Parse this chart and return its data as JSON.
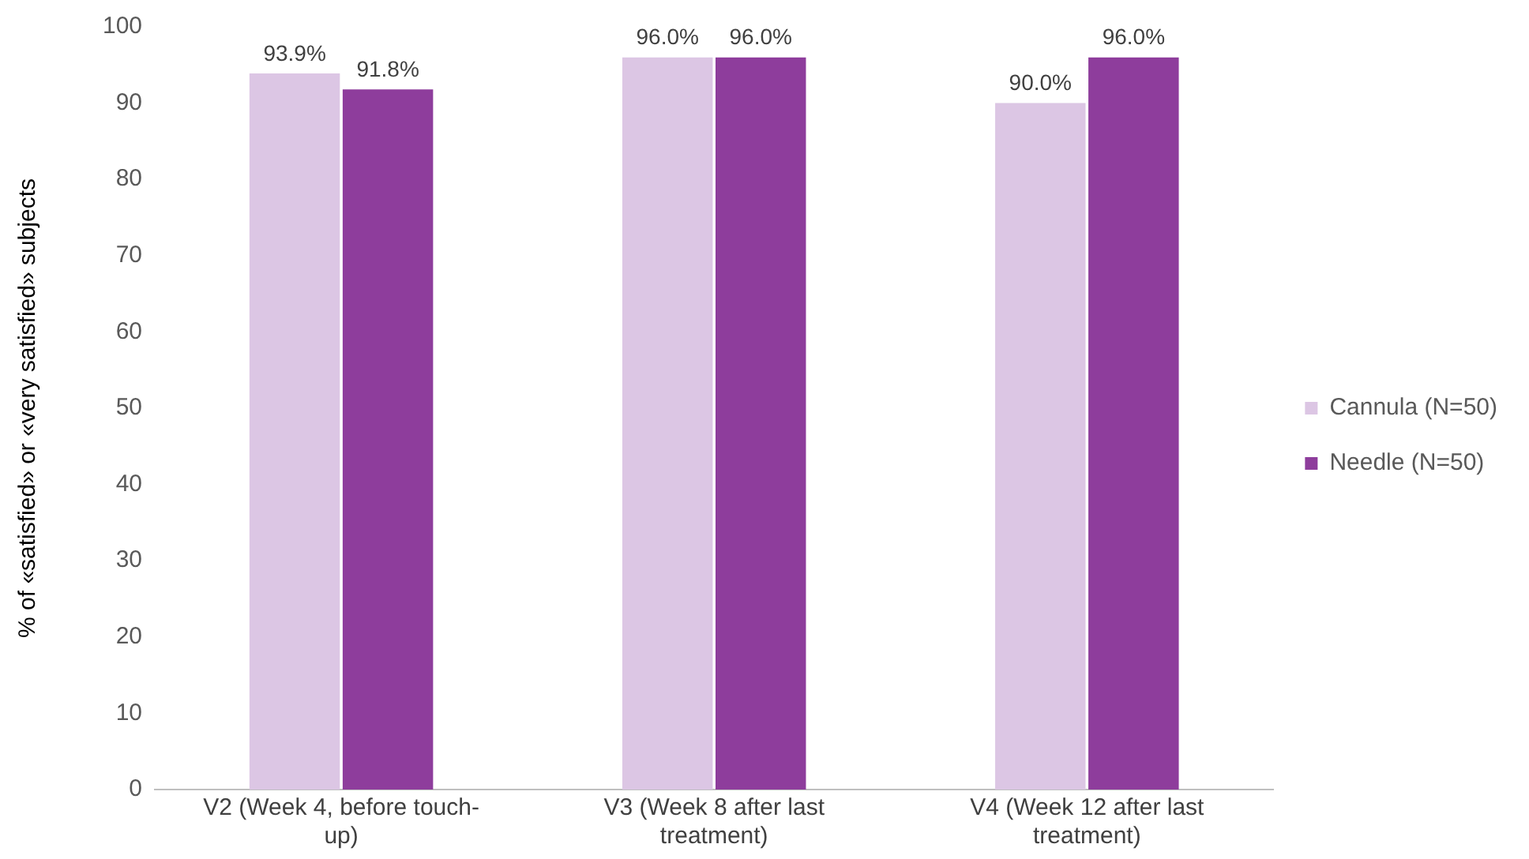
{
  "chart_data": {
    "type": "bar",
    "ylabel": "% of «satisfied» or «very satisfied» subjects",
    "categories": [
      "V2 (Week 4, before touch-up)",
      "V3 (Week 8 after last treatment)",
      "V4 (Week 12 after last treatment)"
    ],
    "series": [
      {
        "name": "Cannula (N=50)",
        "color": "#dcc6e4",
        "values": [
          93.9,
          96.0,
          90.0
        ],
        "value_labels": [
          "93.9%",
          "96.0%",
          "90.0%"
        ]
      },
      {
        "name": "Needle (N=50)",
        "color": "#8e3d9c",
        "values": [
          91.8,
          96.0,
          96.0
        ],
        "value_labels": [
          "91.8%",
          "96.0%",
          "96.0%"
        ]
      }
    ],
    "ylim": [
      0,
      100
    ],
    "yticks": [
      0,
      10,
      20,
      30,
      40,
      50,
      60,
      70,
      80,
      90,
      100
    ],
    "grid": false,
    "legend": "right"
  }
}
